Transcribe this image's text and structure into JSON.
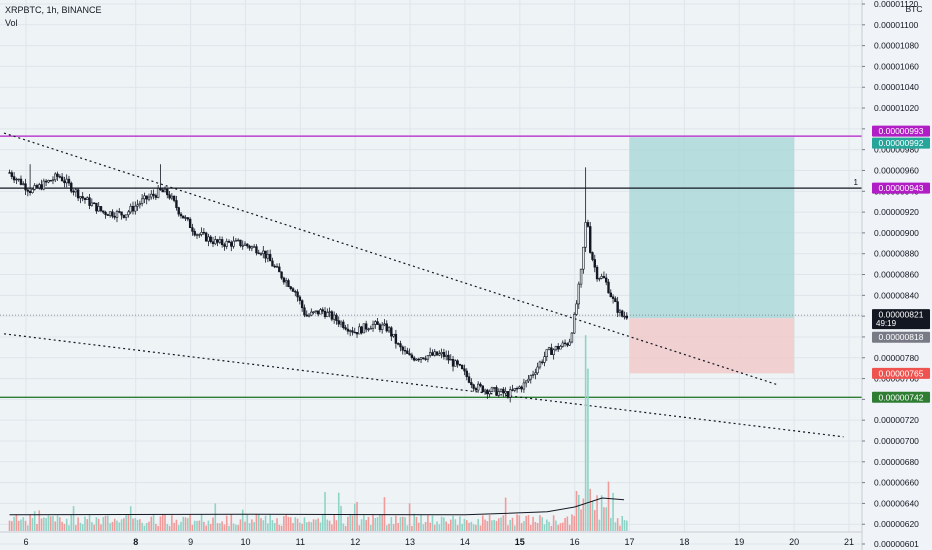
{
  "header": {
    "symbol_line": "XRPBTC, 1h, BINANCE",
    "volume_label": "Vol"
  },
  "price_axis": {
    "unit": "BTC",
    "countdown": "49:19"
  },
  "colors": {
    "background": "#eef3f6",
    "candle": "#131722",
    "resistance_line": "#b21ec6",
    "entry_line": "#131722",
    "support_line": "#2e7d32",
    "trendline": "#131722",
    "target_zone": "#a4d6d6",
    "stop_zone": "#f0c9c9",
    "volume_up": "#8fd3c6",
    "volume_down": "#f19a9a",
    "volume_ma": "#131722",
    "label_target": "#26a69a",
    "label_stop": "#ef5350",
    "label_current": "#131722",
    "label_previous": "#787b86"
  },
  "chart_data": {
    "type": "candlestick",
    "title": "XRPBTC, 1h, BINANCE",
    "y_unit": "BTC",
    "ylim": [
      6e-06,
      1.12e-05
    ],
    "y_ticks": [
      "0.00000601",
      "0.00000620",
      "0.00000640",
      "0.00000660",
      "0.00000680",
      "0.00000700",
      "0.00000720",
      "0.00000740",
      "0.00000760",
      "0.00000780",
      "0.00000800",
      "0.00000820",
      "0.00000840",
      "0.00000860",
      "0.00000880",
      "0.00000900",
      "0.00000920",
      "0.00000940",
      "0.00000960",
      "0.00000980",
      "0.00001000",
      "0.00001020",
      "0.00001040",
      "0.00001060",
      "0.00001080",
      "0.00001100",
      "0.00001120"
    ],
    "x_ticks": [
      "6",
      "8",
      "9",
      "10",
      "11",
      "12",
      "13",
      "14",
      "15",
      "16",
      "17",
      "18",
      "19",
      "20",
      "21"
    ],
    "x_bold_ticks": [
      "8",
      "15"
    ],
    "price_path": [
      [
        5.7,
        9.58e-06
      ],
      [
        6.1,
        9.4e-06
      ],
      [
        6.6,
        9.55e-06
      ],
      [
        7.0,
        9.35e-06
      ],
      [
        7.4,
        9.2e-06
      ],
      [
        7.8,
        9.18e-06
      ],
      [
        8.1,
        9.3e-06
      ],
      [
        8.45,
        9.4e-06
      ],
      [
        8.6,
        9.37e-06
      ],
      [
        8.8,
        9.2e-06
      ],
      [
        9.1,
        9e-06
      ],
      [
        9.5,
        8.9e-06
      ],
      [
        9.9,
        8.9e-06
      ],
      [
        10.3,
        8.83e-06
      ],
      [
        10.6,
        8.62e-06
      ],
      [
        10.9,
        8.45e-06
      ],
      [
        11.1,
        8.2e-06
      ],
      [
        11.4,
        8.25e-06
      ],
      [
        11.7,
        8.15e-06
      ],
      [
        12.0,
        8.05e-06
      ],
      [
        12.3,
        8.12e-06
      ],
      [
        12.6,
        8.08e-06
      ],
      [
        12.8,
        7.9e-06
      ],
      [
        13.0,
        7.8e-06
      ],
      [
        13.3,
        7.82e-06
      ],
      [
        13.6,
        7.83e-06
      ],
      [
        13.9,
        7.7e-06
      ],
      [
        14.2,
        7.52e-06
      ],
      [
        14.5,
        7.48e-06
      ],
      [
        14.8,
        7.45e-06
      ],
      [
        15.1,
        7.55e-06
      ],
      [
        15.3,
        7.7e-06
      ],
      [
        15.5,
        7.85e-06
      ],
      [
        15.7,
        7.9e-06
      ],
      [
        15.9,
        7.95e-06
      ],
      [
        16.0,
        8.2e-06
      ],
      [
        16.12,
        8.63e-06
      ],
      [
        16.22,
        9.2e-06
      ],
      [
        16.28,
        8.85e-06
      ],
      [
        16.4,
        8.6e-06
      ],
      [
        16.55,
        8.55e-06
      ],
      [
        16.7,
        8.35e-06
      ],
      [
        16.85,
        8.2e-06
      ],
      [
        16.95,
        8.21e-06
      ]
    ],
    "candle_wicks_high": [
      [
        6.1,
        9.66e-06
      ],
      [
        8.45,
        9.66e-06
      ],
      [
        16.22,
        9.63e-06
      ],
      [
        14.8,
        7.42e-06
      ]
    ],
    "volume": {
      "label": "Vol",
      "spike_day": 16.22,
      "ma_path": [
        [
          5.7,
          0.27
        ],
        [
          10.0,
          0.28
        ],
        [
          14.0,
          0.27
        ],
        [
          15.5,
          0.32
        ],
        [
          16.0,
          0.4
        ],
        [
          16.5,
          0.55
        ],
        [
          16.9,
          0.52
        ]
      ]
    },
    "levels": [
      {
        "name": "resistance",
        "value": 9.93e-06,
        "label": "0.00000993",
        "color": "#b21ec6"
      },
      {
        "name": "target",
        "value": 9.92e-06,
        "label": "0.00000992",
        "color": "#26a69a"
      },
      {
        "name": "entry",
        "value": 9.43e-06,
        "label": "0.00000943",
        "color": "#b21ec6"
      },
      {
        "name": "current",
        "value": 8.21e-06,
        "label": "0.00000821",
        "color": "#131722"
      },
      {
        "name": "previous",
        "value": 8.18e-06,
        "label": "0.00000818",
        "color": "#787b86"
      },
      {
        "name": "stop",
        "value": 7.65e-06,
        "label": "0.00000765",
        "color": "#ef5350"
      },
      {
        "name": "support",
        "value": 7.42e-06,
        "label": "0.00000742",
        "color": "#2e7d32"
      }
    ],
    "level_marker": "1",
    "trendlines": [
      {
        "name": "upper-downtrend",
        "from": [
          5.6,
          9.96e-06
        ],
        "to": [
          19.7,
          7.54e-06
        ]
      },
      {
        "name": "lower-downtrend",
        "from": [
          5.6,
          8.03e-06
        ],
        "to": [
          20.9,
          7.04e-06
        ]
      }
    ],
    "position": {
      "from_day": 17.0,
      "to_day": 20.0,
      "target": 9.92e-06,
      "entry": 8.18e-06,
      "stop": 7.65e-06
    }
  }
}
